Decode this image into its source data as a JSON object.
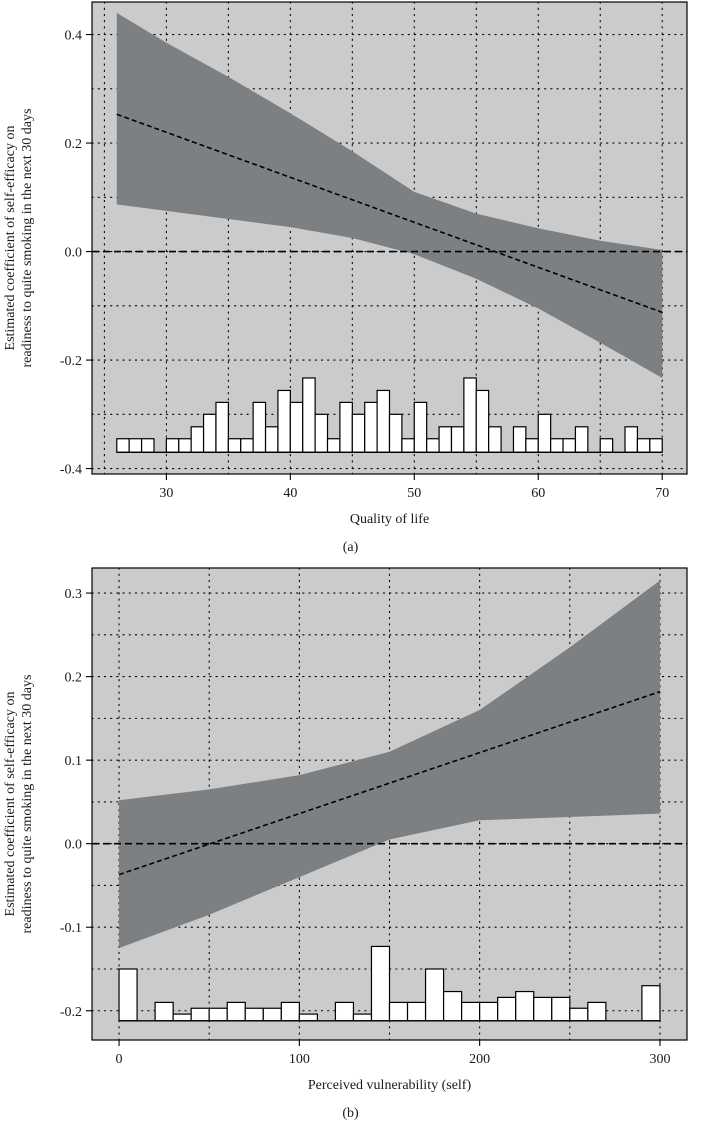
{
  "chart_data": [
    {
      "id": "a",
      "type": "line",
      "panel_label": "(a)",
      "xlabel": "Quality of life",
      "ylabel": [
        "Estimated coefficient of self-efficacy on",
        "readiness to quite smoking in the next 30 days"
      ],
      "xlim": [
        24,
        72
      ],
      "ylim": [
        -0.41,
        0.46
      ],
      "xticks": [
        30,
        40,
        50,
        60,
        70
      ],
      "yticks": [
        -0.4,
        -0.2,
        0.0,
        0.2,
        0.4
      ],
      "ytick_labels": [
        "-0.4",
        "-0.2",
        "0.0",
        "0.2",
        "0.4"
      ],
      "grid": true,
      "minor_grid_x": [
        25,
        35,
        45,
        55,
        65
      ],
      "minor_grid_y": [
        -0.3,
        -0.1,
        0.1,
        0.3
      ],
      "reference_line_y": 0.0,
      "series": [
        {
          "role": "estimate",
          "style": "dashed",
          "x": [
            26,
            70
          ],
          "y": [
            0.253,
            -0.112
          ]
        }
      ],
      "band": {
        "x": [
          26,
          30,
          35,
          40,
          45,
          50,
          55,
          60,
          65,
          70
        ],
        "lower": [
          0.087,
          0.075,
          0.06,
          0.045,
          0.025,
          -0.005,
          -0.05,
          -0.105,
          -0.168,
          -0.233
        ],
        "upper": [
          0.44,
          0.385,
          0.322,
          0.255,
          0.185,
          0.11,
          0.07,
          0.043,
          0.02,
          0.003
        ]
      },
      "rug_baseline": -0.37,
      "rug_bin_width": 1,
      "rug": [
        {
          "x": 26,
          "y": -0.345
        },
        {
          "x": 27,
          "y": -0.345
        },
        {
          "x": 28,
          "y": -0.345
        },
        {
          "x": 30,
          "y": -0.345
        },
        {
          "x": 31,
          "y": -0.345
        },
        {
          "x": 32,
          "y": -0.323
        },
        {
          "x": 33,
          "y": -0.3
        },
        {
          "x": 34,
          "y": -0.278
        },
        {
          "x": 35,
          "y": -0.345
        },
        {
          "x": 36,
          "y": -0.345
        },
        {
          "x": 37,
          "y": -0.278
        },
        {
          "x": 38,
          "y": -0.323
        },
        {
          "x": 39,
          "y": -0.256
        },
        {
          "x": 40,
          "y": -0.278
        },
        {
          "x": 41,
          "y": -0.233
        },
        {
          "x": 42,
          "y": -0.3
        },
        {
          "x": 43,
          "y": -0.345
        },
        {
          "x": 44,
          "y": -0.278
        },
        {
          "x": 45,
          "y": -0.3
        },
        {
          "x": 46,
          "y": -0.278
        },
        {
          "x": 47,
          "y": -0.256
        },
        {
          "x": 48,
          "y": -0.3
        },
        {
          "x": 49,
          "y": -0.345
        },
        {
          "x": 50,
          "y": -0.278
        },
        {
          "x": 51,
          "y": -0.345
        },
        {
          "x": 52,
          "y": -0.323
        },
        {
          "x": 53,
          "y": -0.323
        },
        {
          "x": 54,
          "y": -0.233
        },
        {
          "x": 55,
          "y": -0.256
        },
        {
          "x": 56,
          "y": -0.323
        },
        {
          "x": 58,
          "y": -0.323
        },
        {
          "x": 59,
          "y": -0.345
        },
        {
          "x": 60,
          "y": -0.3
        },
        {
          "x": 61,
          "y": -0.345
        },
        {
          "x": 62,
          "y": -0.345
        },
        {
          "x": 63,
          "y": -0.323
        },
        {
          "x": 65,
          "y": -0.345
        },
        {
          "x": 67,
          "y": -0.323
        },
        {
          "x": 68,
          "y": -0.345
        },
        {
          "x": 69,
          "y": -0.345
        }
      ]
    },
    {
      "id": "b",
      "type": "line",
      "panel_label": "(b)",
      "xlabel": "Perceived vulnerability (self)",
      "ylabel": [
        "Estimated coefficient of self-efficacy on",
        "readiness to quite smoking in the next 30 days"
      ],
      "xlim": [
        -15,
        315
      ],
      "ylim": [
        -0.235,
        0.33
      ],
      "xticks": [
        0,
        100,
        200,
        300
      ],
      "yticks": [
        -0.2,
        -0.1,
        0.0,
        0.1,
        0.2,
        0.3
      ],
      "ytick_labels": [
        "-0.2",
        "-0.1",
        "0.0",
        "0.1",
        "0.2",
        "0.3"
      ],
      "grid": true,
      "minor_grid_x": [
        50,
        150,
        250
      ],
      "minor_grid_y": [
        -0.15,
        -0.05,
        0.05,
        0.15,
        0.25
      ],
      "reference_line_y": 0.0,
      "series": [
        {
          "role": "estimate",
          "style": "dashed",
          "x": [
            0,
            300
          ],
          "y": [
            -0.037,
            0.182
          ]
        }
      ],
      "band": {
        "x": [
          0,
          50,
          100,
          150,
          200,
          250,
          300
        ],
        "lower": [
          -0.125,
          -0.085,
          -0.04,
          0.005,
          0.028,
          0.032,
          0.036
        ],
        "upper": [
          0.052,
          0.065,
          0.082,
          0.11,
          0.16,
          0.235,
          0.315
        ]
      },
      "rug_baseline": -0.212,
      "rug_bin_width": 10,
      "rug": [
        {
          "x": 0,
          "y": -0.15
        },
        {
          "x": 20,
          "y": -0.19
        },
        {
          "x": 30,
          "y": -0.204
        },
        {
          "x": 40,
          "y": -0.197
        },
        {
          "x": 50,
          "y": -0.197
        },
        {
          "x": 60,
          "y": -0.19
        },
        {
          "x": 70,
          "y": -0.197
        },
        {
          "x": 80,
          "y": -0.197
        },
        {
          "x": 90,
          "y": -0.19
        },
        {
          "x": 100,
          "y": -0.204
        },
        {
          "x": 120,
          "y": -0.19
        },
        {
          "x": 130,
          "y": -0.204
        },
        {
          "x": 140,
          "y": -0.123
        },
        {
          "x": 150,
          "y": -0.19
        },
        {
          "x": 160,
          "y": -0.19
        },
        {
          "x": 170,
          "y": -0.15
        },
        {
          "x": 180,
          "y": -0.177
        },
        {
          "x": 190,
          "y": -0.19
        },
        {
          "x": 200,
          "y": -0.19
        },
        {
          "x": 210,
          "y": -0.184
        },
        {
          "x": 220,
          "y": -0.177
        },
        {
          "x": 230,
          "y": -0.184
        },
        {
          "x": 240,
          "y": -0.184
        },
        {
          "x": 250,
          "y": -0.197
        },
        {
          "x": 260,
          "y": -0.19
        },
        {
          "x": 290,
          "y": -0.17
        }
      ]
    }
  ],
  "colors": {
    "panel_bg": "#cbcbcc",
    "band_fill": "#7d8083",
    "rug_fill": "#ffffff",
    "line": "#000000",
    "grid": "#000000"
  }
}
